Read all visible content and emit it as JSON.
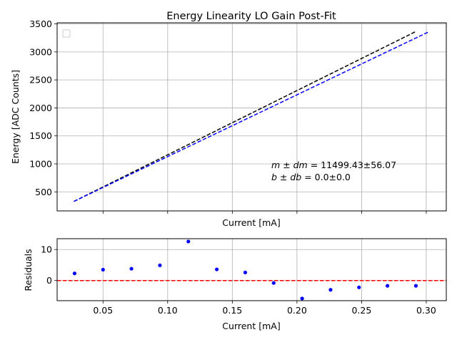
{
  "chart_data": [
    {
      "type": "line",
      "title": "Energy Linearity LO Gain Post-Fit",
      "xlabel": "Current [mA]",
      "ylabel": "Energy [ADC Counts]",
      "xlim": [
        0.0145,
        0.3155
      ],
      "ylim": [
        160,
        3520
      ],
      "yticks": [
        500,
        1000,
        1500,
        2000,
        2500,
        3000,
        3500
      ],
      "yticklabels": [
        "500",
        "1000",
        "1500",
        "2000",
        "2500",
        "3000",
        "3500"
      ],
      "xticks": [
        0.05,
        0.1,
        0.15,
        0.2,
        0.25,
        0.3
      ],
      "grid": true,
      "legend": "top-left (empty)",
      "series": [
        {
          "name": "black dashed line",
          "color": "#000000",
          "style": "dashed",
          "x": [
            0.0275,
            0.292
          ],
          "y": [
            330,
            3365
          ]
        },
        {
          "name": "blue dashed line",
          "color": "#0000ff",
          "style": "dashed",
          "x": [
            0.0275,
            0.3025
          ],
          "y": [
            330,
            3365
          ]
        }
      ],
      "annotations": [
        "m ± dm = 11499.43±56.07",
        "b ± db = 0.0±0.0"
      ]
    },
    {
      "type": "scatter",
      "title": "",
      "xlabel": "Current [mA]",
      "ylabel": "Residuals",
      "xlim": [
        0.0145,
        0.3155
      ],
      "ylim": [
        -6.5,
        13.5
      ],
      "xticks": [
        0.05,
        0.1,
        0.15,
        0.2,
        0.25,
        0.3
      ],
      "xticklabels": [
        "0.05",
        "0.10",
        "0.15",
        "0.20",
        "0.25",
        "0.30"
      ],
      "yticks": [
        0,
        10
      ],
      "yticklabels": [
        "0",
        "10"
      ],
      "grid": true,
      "reference_line": {
        "y": 0,
        "color": "#ff0000",
        "style": "dashed"
      },
      "series": [
        {
          "name": "residuals",
          "color": "#0000ff",
          "x": [
            0.028,
            0.05,
            0.072,
            0.094,
            0.116,
            0.138,
            0.16,
            0.182,
            0.204,
            0.226,
            0.248,
            0.27,
            0.292
          ],
          "y": [
            2.3,
            3.5,
            3.8,
            4.9,
            12.6,
            3.6,
            2.6,
            -0.8,
            -5.8,
            -3.0,
            -2.2,
            -1.7,
            -1.7
          ]
        }
      ]
    }
  ],
  "colors": {
    "grid": "#b0b0b0",
    "axis": "#000000"
  }
}
